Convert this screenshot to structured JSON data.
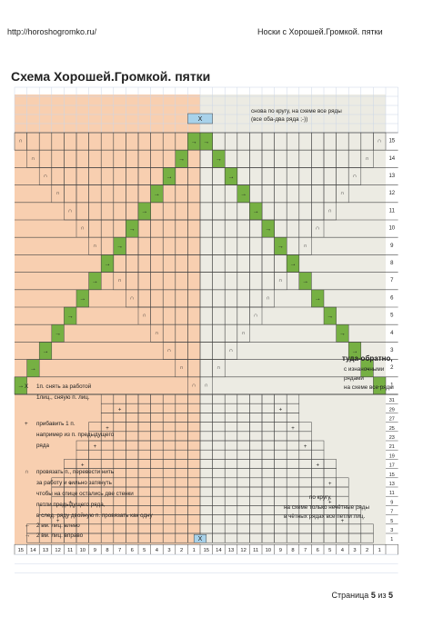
{
  "header": {
    "url": "http://horoshogromko.ru/",
    "doc_title": "Носки с Хорошей.Громкой. пятки"
  },
  "title": "Схема Хорошей.Громкой. пятки",
  "footer": {
    "page_prefix": "Страница ",
    "page_num": "5",
    "page_mid": " из ",
    "page_total": "5"
  },
  "chart": {
    "top_marker": "X",
    "bottom_marker": "X",
    "top_note": [
      "снова по кругу, на схеме все ряды",
      "(все оба-два ряда ;-))"
    ],
    "row_labels_top": [
      "15",
      "14",
      "13",
      "12",
      "11",
      "10",
      "9",
      "8",
      "7",
      "6",
      "5",
      "4",
      "3",
      "2",
      "1"
    ],
    "row_labels_bottom": [
      "31",
      "29",
      "27",
      "25",
      "23",
      "21",
      "19",
      "17",
      "15",
      "13",
      "11",
      "9",
      "7",
      "5",
      "3",
      "1"
    ],
    "col_labels": [
      "15",
      "14",
      "13",
      "12",
      "11",
      "10",
      "9",
      "8",
      "7",
      "6",
      "5",
      "4",
      "3",
      "2",
      "1",
      "15",
      "14",
      "13",
      "12",
      "11",
      "10",
      "9",
      "8",
      "7",
      "6",
      "5",
      "4",
      "3",
      "2",
      "1"
    ],
    "symbols": {
      "arrow": "→",
      "loop": "∩",
      "plus": "+"
    }
  },
  "notes": {
    "right_title": "туда-обратно,",
    "right_lines": [
      "с изнаночными",
      "рядами",
      "на схеме все ряды"
    ],
    "x_text": [
      "1п. снять за работой",
      "1лиц., сняую п. лиц."
    ],
    "x_key": "X",
    "plus_key": "+",
    "plus_text": [
      "прибавить 1 п.",
      "например из п. предыдущего",
      "ряда"
    ],
    "loop_key": "∩",
    "loop_text": [
      "провязать п., перевести нить",
      "за работу и сильно затянуть",
      "чтобы на спице остались две стенки",
      "петли предыдущего ряда,",
      "в след. ряду двойную п. провязать как одну"
    ],
    "round_text": [
      "по кругу,",
      "на схеме только нечётные ряды",
      "в чётных рядах все петли лиц."
    ],
    "left_arrow_key": "←",
    "left_arrow_text": "2 вм. лиц. влево",
    "right_arrow_key": "→",
    "right_arrow_text": "2 вм. лиц. вправо"
  },
  "colors": {
    "peach": "#f8cfb0",
    "grey": "#ecebe3",
    "green": "#76b043",
    "blue": "#a8d2ea",
    "grid": "#444"
  }
}
